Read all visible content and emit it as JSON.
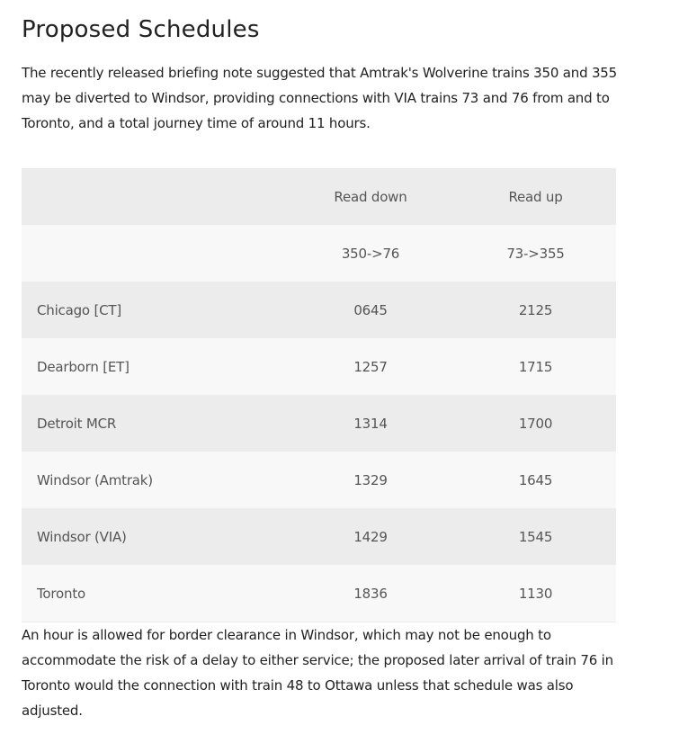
{
  "heading": "Proposed Schedules",
  "intro": "The recently released briefing note suggested that Amtrak's Wolverine trains 350 and 355 may be diverted to Windsor, providing connections with VIA trains 73 and 76 from and to Toronto, and a total journey time of around 11 hours.",
  "table": {
    "header": [
      "",
      "Read down",
      "Read up"
    ],
    "rows": [
      [
        "",
        "350->76",
        "73->355"
      ],
      [
        "Chicago [CT]",
        "0645",
        "2125"
      ],
      [
        "Dearborn [ET]",
        "1257",
        "1715"
      ],
      [
        "Detroit MCR",
        "1314",
        "1700"
      ],
      [
        "Windsor (Amtrak)",
        "1329",
        "1645"
      ],
      [
        "Windsor (VIA)",
        "1429",
        "1545"
      ],
      [
        "Toronto",
        "1836",
        "1130"
      ]
    ]
  },
  "outro": "An hour is allowed for border clearance in Windsor, which may not be enough to accommodate the risk of a delay to either service; the proposed later arrival of train 76 in Toronto would the connection with train 48 to Ottawa unless that schedule was also adjusted."
}
